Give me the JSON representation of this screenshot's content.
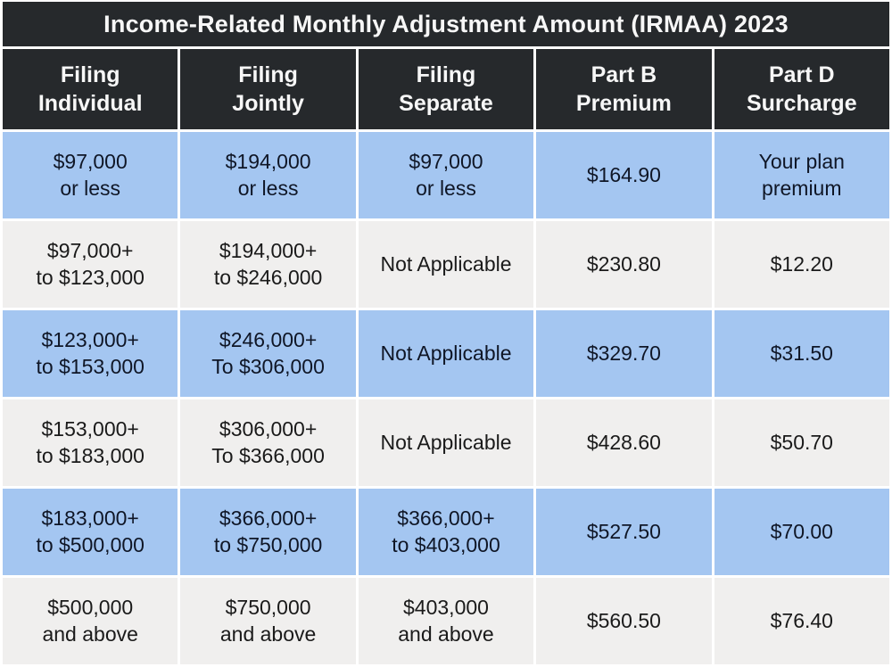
{
  "title": "Income-Related Monthly Adjustment Amount (IRMAA) 2023",
  "colors": {
    "header_bg": "#26292c",
    "row_blue": "#a4c6f1",
    "row_gray": "#f0efee",
    "gap_white": "#ffffff",
    "header_text": "#f7f7f7"
  },
  "table": {
    "headers": [
      "Filing\nIndividual",
      "Filing\nJointly",
      "Filing\nSeparate",
      "Part B\nPremium",
      "Part D\nSurcharge"
    ],
    "rows": [
      {
        "cells": [
          "$97,000\nor less",
          "$194,000\nor less",
          "$97,000\nor less",
          "$164.90",
          "Your plan\npremium"
        ]
      },
      {
        "cells": [
          "$97,000+\nto $123,000",
          "$194,000+\nto $246,000",
          "Not Applicable",
          "$230.80",
          "$12.20"
        ]
      },
      {
        "cells": [
          "$123,000+\nto $153,000",
          "$246,000+\nTo $306,000",
          "Not Applicable",
          "$329.70",
          "$31.50"
        ]
      },
      {
        "cells": [
          "$153,000+\nto $183,000",
          "$306,000+\nTo $366,000",
          "Not Applicable",
          "$428.60",
          "$50.70"
        ]
      },
      {
        "cells": [
          "$183,000+\nto $500,000",
          "$366,000+\nto $750,000",
          "$366,000+\nto $403,000",
          "$527.50",
          "$70.00"
        ]
      },
      {
        "cells": [
          "$500,000\nand above",
          "$750,000\nand above",
          "$403,000\nand above",
          "$560.50",
          "$76.40"
        ]
      }
    ]
  },
  "chart_data": {
    "type": "table",
    "title": "Income-Related Monthly Adjustment Amount (IRMAA) 2023",
    "columns": [
      "Filing Individual",
      "Filing Jointly",
      "Filing Separate",
      "Part B Premium",
      "Part D Surcharge"
    ],
    "rows": [
      [
        "$97,000 or less",
        "$194,000 or less",
        "$97,000 or less",
        "$164.90",
        "Your plan premium"
      ],
      [
        "$97,000+ to $123,000",
        "$194,000+ to $246,000",
        "Not Applicable",
        "$230.80",
        "$12.20"
      ],
      [
        "$123,000+ to $153,000",
        "$246,000+ To $306,000",
        "Not Applicable",
        "$329.70",
        "$31.50"
      ],
      [
        "$153,000+ to $183,000",
        "$306,000+ To $366,000",
        "Not Applicable",
        "$428.60",
        "$50.70"
      ],
      [
        "$183,000+ to $500,000",
        "$366,000+ to $750,000",
        "$366,000+ to $403,000",
        "$527.50",
        "$70.00"
      ],
      [
        "$500,000 and above",
        "$750,000 and above",
        "$403,000 and above",
        "$560.50",
        "$76.40"
      ]
    ],
    "layout": {
      "row_striping": [
        "blue",
        "gray"
      ],
      "header_style": "dark",
      "grid": "white-gaps"
    }
  }
}
